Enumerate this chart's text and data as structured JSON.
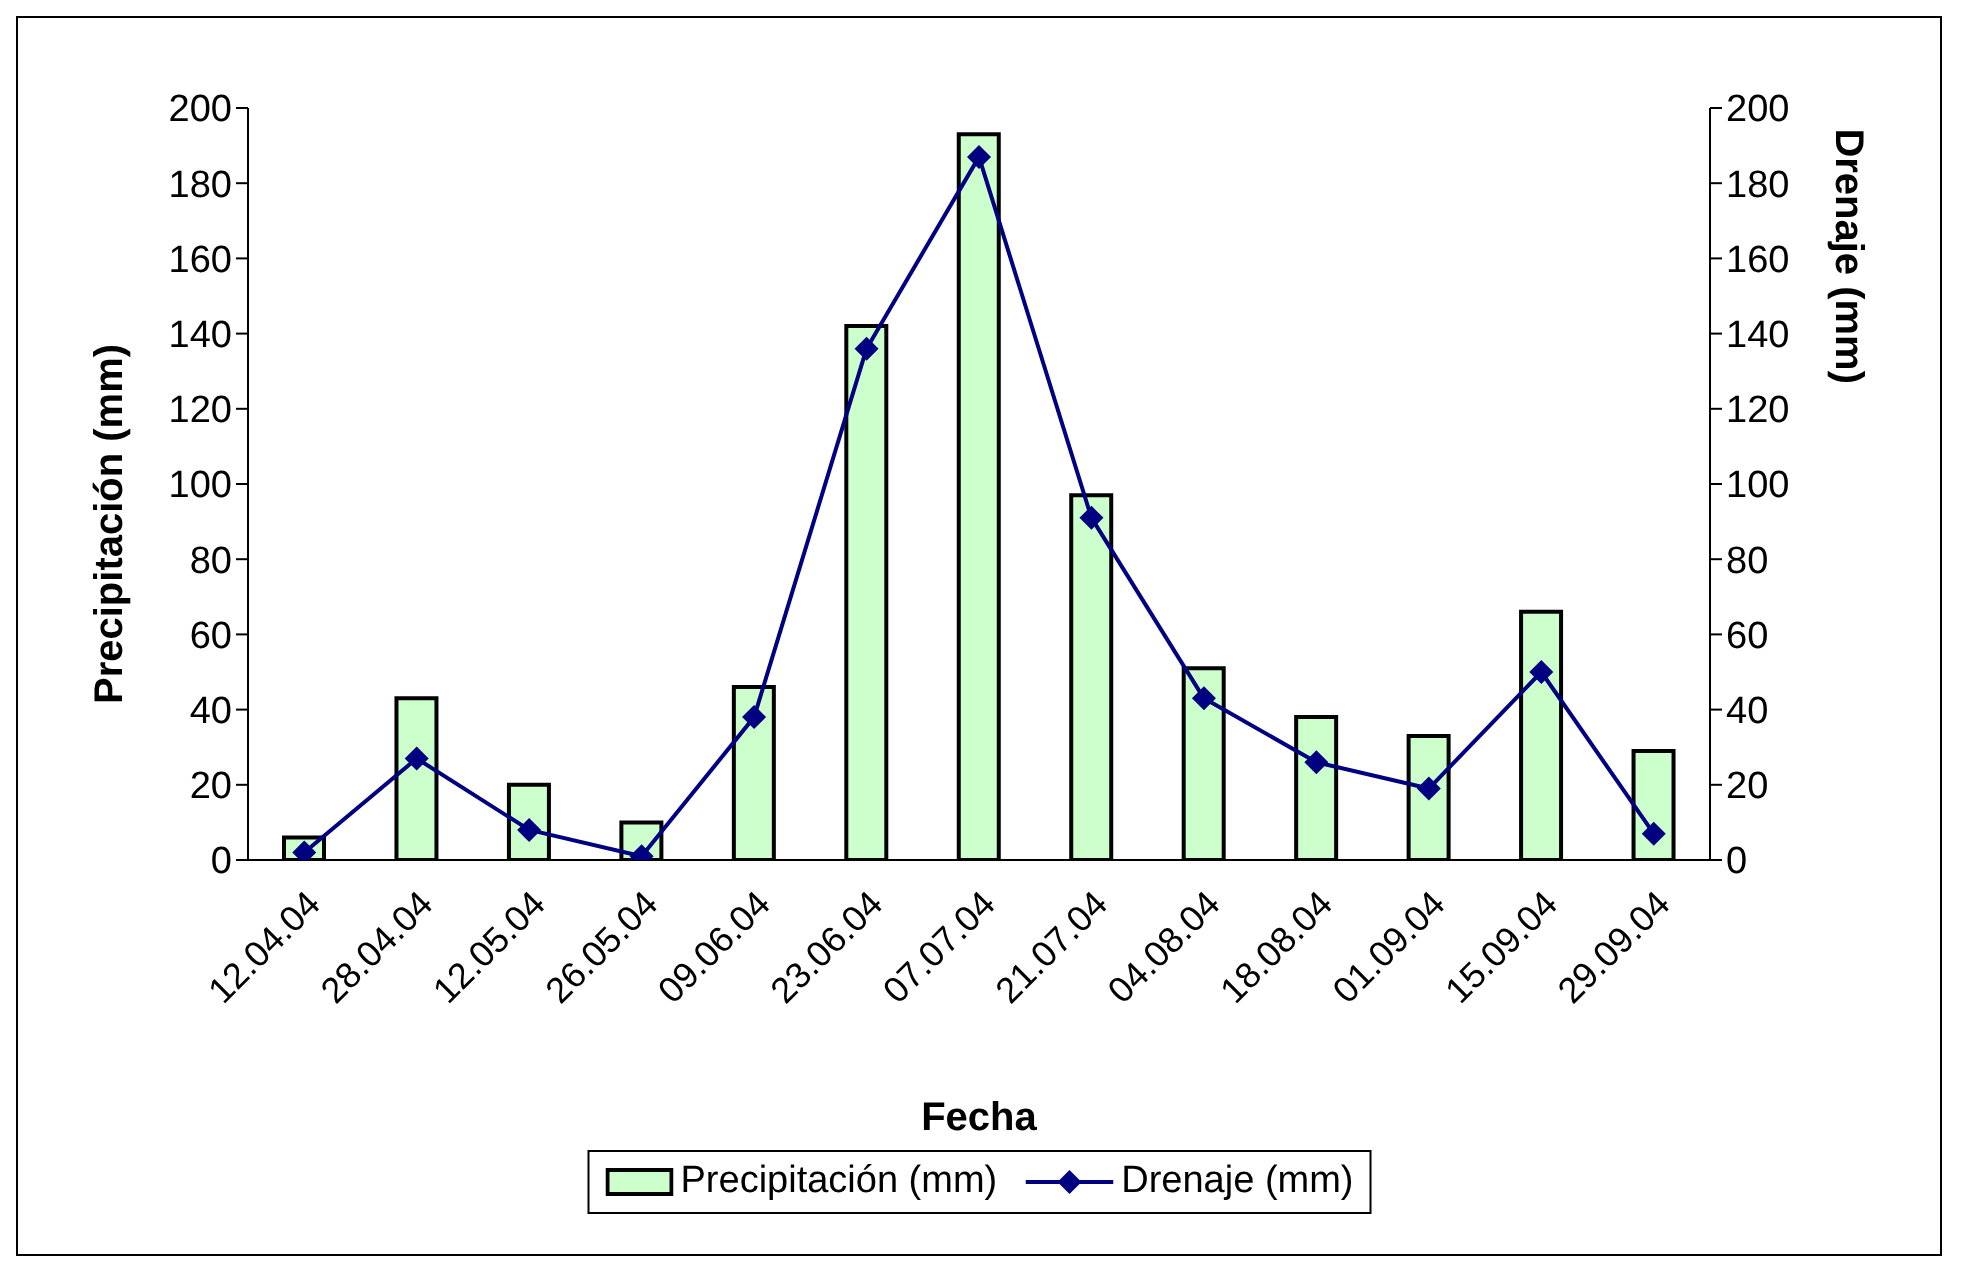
{
  "chart_data": {
    "type": "bar",
    "xlabel": "Fecha",
    "ylabel": "Precipitación (mm)",
    "y2label": "Drenaje (mm)",
    "categories": [
      "12.04.04",
      "28.04.04",
      "12.05.04",
      "26.05.04",
      "09.06.04",
      "23.06.04",
      "07.07.04",
      "21.07.04",
      "04.08.04",
      "18.08.04",
      "01.09.04",
      "15.09.04",
      "29.09.04"
    ],
    "series": [
      {
        "name": "Precipitación (mm)",
        "color": "#ccffcc",
        "values": [
          6,
          43,
          20,
          10,
          46,
          142,
          193,
          97,
          51,
          38,
          33,
          66,
          29
        ]
      },
      {
        "name": "Drenaje (mm)",
        "type": "line",
        "axis": "y2",
        "color": "#000080",
        "marker": "diamond",
        "values": [
          2,
          27,
          8,
          1,
          38,
          136,
          187,
          91,
          43,
          26,
          19,
          50,
          7
        ]
      }
    ],
    "ylim": [
      0,
      200
    ],
    "yticks": [
      0,
      20,
      40,
      60,
      80,
      100,
      120,
      140,
      160,
      180,
      200
    ],
    "y2lim": [
      0,
      200
    ],
    "y2ticks": [
      0,
      20,
      40,
      60,
      80,
      100,
      120,
      140,
      160,
      180,
      200
    ],
    "grid": false,
    "legend": "bottom"
  }
}
